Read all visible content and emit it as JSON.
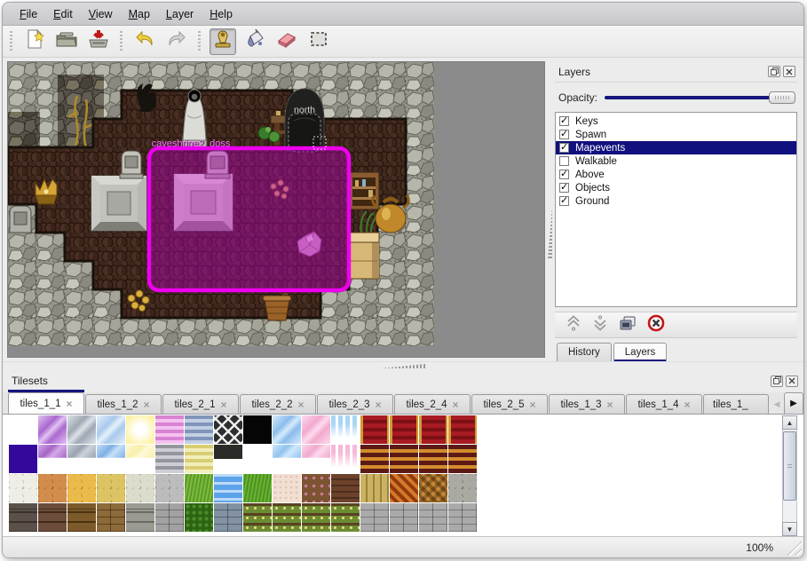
{
  "menu": {
    "items": [
      "File",
      "Edit",
      "View",
      "Map",
      "Layer",
      "Help"
    ]
  },
  "toolbar": {
    "tools": [
      "new-file",
      "open",
      "save",
      "undo",
      "redo",
      "stamp",
      "fill",
      "eraser",
      "select-rect"
    ],
    "active_tool": "stamp"
  },
  "map": {
    "door_label": "north",
    "event_label": "caveshrine2_doss",
    "selection_color": "#ee00ee"
  },
  "layers_panel": {
    "title": "Layers",
    "opacity_label": "Opacity:",
    "opacity_percent": 100,
    "items": [
      {
        "label": "Keys",
        "checked": true,
        "selected": false
      },
      {
        "label": "Spawn",
        "checked": true,
        "selected": false
      },
      {
        "label": "Mapevents",
        "checked": true,
        "selected": true
      },
      {
        "label": "Walkable",
        "checked": false,
        "selected": false
      },
      {
        "label": "Above",
        "checked": true,
        "selected": false
      },
      {
        "label": "Objects",
        "checked": true,
        "selected": false
      },
      {
        "label": "Ground",
        "checked": true,
        "selected": false
      }
    ],
    "tools": [
      "raise-layer",
      "lower-layer",
      "duplicate-layer",
      "delete-layer"
    ],
    "tabs": [
      {
        "label": "History",
        "active": false
      },
      {
        "label": "Layers",
        "active": true
      }
    ]
  },
  "tilesets_panel": {
    "title": "Tilesets",
    "tabs": [
      {
        "label": "tiles_1_1",
        "active": true,
        "clipped": false
      },
      {
        "label": "tiles_1_2",
        "active": false,
        "clipped": false
      },
      {
        "label": "tiles_2_1",
        "active": false,
        "clipped": false
      },
      {
        "label": "tiles_2_2",
        "active": false,
        "clipped": false
      },
      {
        "label": "tiles_2_3",
        "active": false,
        "clipped": false
      },
      {
        "label": "tiles_2_4",
        "active": false,
        "clipped": false
      },
      {
        "label": "tiles_2_5",
        "active": false,
        "clipped": false
      },
      {
        "label": "tiles_1_3",
        "active": false,
        "clipped": false
      },
      {
        "label": "tiles_1_4",
        "active": false,
        "clipped": false
      },
      {
        "label": "tiles_1_",
        "active": false,
        "clipped": true
      }
    ],
    "tile_rows": [
      [
        {
          "k": "solid",
          "a": "#ffffff"
        },
        {
          "k": "glass",
          "a": "#a969cf",
          "b": "#e2c2f2"
        },
        {
          "k": "glass",
          "a": "#9fa9b4",
          "b": "#dde2e8"
        },
        {
          "k": "glass",
          "a": "#a9c9ec",
          "b": "#e6f1fc"
        },
        {
          "k": "glow",
          "a": "#fdf2a8"
        },
        {
          "k": "hstripes",
          "a": "#d983d3",
          "b": "#f4c2f0"
        },
        {
          "k": "hstripes",
          "a": "#8195bb",
          "b": "#c3cfe3"
        },
        {
          "k": "lattice",
          "a": "#2e2e2e",
          "b": "#ececec"
        },
        {
          "k": "solid",
          "a": "#050505"
        },
        {
          "k": "glass",
          "a": "#8cbcec",
          "b": "#d6ebfd"
        },
        {
          "k": "glass",
          "a": "#f2a9cd",
          "b": "#fcdcee"
        },
        {
          "k": "icicle",
          "a": "#a9d6f6"
        },
        {
          "k": "carpet",
          "a": "#a81b22",
          "b": "#d19a32"
        },
        {
          "k": "carpet",
          "a": "#a81b22",
          "b": "#d19a32"
        },
        {
          "k": "carpet",
          "a": "#a81b22",
          "b": "#d19a32"
        },
        {
          "k": "carpet",
          "a": "#a81b22",
          "b": "#d19a32"
        }
      ],
      [
        {
          "k": "solid",
          "a": "#33089b"
        },
        {
          "k": "glasshalf",
          "a": "#a565c5",
          "b": "#d5a9e9"
        },
        {
          "k": "glasshalf",
          "a": "#98a2ae",
          "b": "#ccd3da"
        },
        {
          "k": "glasshalf",
          "a": "#7fb0e4",
          "b": "#c6e0f8"
        },
        {
          "k": "glasshalf",
          "a": "#f7efa9",
          "b": "#fdf9d8"
        },
        {
          "k": "hstripes",
          "a": "#95959d",
          "b": "#cdcdd5"
        },
        {
          "k": "hstripes",
          "a": "#d9cd74",
          "b": "#f2eebb"
        },
        {
          "k": "signhalf",
          "a": "#2b2b28"
        },
        {
          "k": "solid",
          "a": "#ffffff"
        },
        {
          "k": "glasshalf",
          "a": "#90c2ec",
          "b": "#d0e8fc"
        },
        {
          "k": "glasshalf",
          "a": "#f0a9cd",
          "b": "#fad9ec"
        },
        {
          "k": "icicle",
          "a": "#f6b9da"
        },
        {
          "k": "hstripes2",
          "a": "#5c1a17",
          "b": "#d28d2c"
        },
        {
          "k": "hstripes2",
          "a": "#5c1a17",
          "b": "#d28d2c"
        },
        {
          "k": "hstripes2",
          "a": "#5c1a17",
          "b": "#d28d2c"
        },
        {
          "k": "hstripes2",
          "a": "#5c1a17",
          "b": "#d28d2c"
        }
      ],
      [
        {
          "k": "cobble",
          "a": "#eeeee6",
          "b": "#b9b9af"
        },
        {
          "k": "cobble",
          "a": "#d28d4c",
          "b": "#a55a28"
        },
        {
          "k": "cobble",
          "a": "#eaba4a",
          "b": "#c18a22"
        },
        {
          "k": "cobble",
          "a": "#dcc364",
          "b": "#ab9342"
        },
        {
          "k": "cobble",
          "a": "#dcdccc",
          "b": "#a9a999"
        },
        {
          "k": "cobble",
          "a": "#bcbcbc",
          "b": "#8a8a92"
        },
        {
          "k": "grass",
          "a": "#7cbb3c",
          "b": "#5c9a2a"
        },
        {
          "k": "water",
          "a": "#5ca2ea",
          "b": "#bbdaf8"
        },
        {
          "k": "grass",
          "a": "#6ab232",
          "b": "#4c9222"
        },
        {
          "k": "noise",
          "a": "#f2dfd2",
          "b": "#e2c2b2"
        },
        {
          "k": "floral",
          "a": "#7c5432",
          "b": "#ca7a92"
        },
        {
          "k": "shingle",
          "a": "#4c2e1e",
          "b": "#6c422a"
        },
        {
          "k": "planks",
          "a": "#cab262",
          "b": "#9a823a"
        },
        {
          "k": "weave",
          "a": "#d27a2a",
          "b": "#923a0a"
        },
        {
          "k": "herring",
          "a": "#c28a3a",
          "b": "#925a1a"
        },
        {
          "k": "cobble",
          "a": "#aaaaa2",
          "b": "#72726a"
        }
      ],
      [
        {
          "k": "wall",
          "a": "#5a524a",
          "b": "#3a322a"
        },
        {
          "k": "wall",
          "a": "#6c4c3a",
          "b": "#422a1a"
        },
        {
          "k": "wall",
          "a": "#7c5a2a",
          "b": "#4c3212"
        },
        {
          "k": "brick",
          "a": "#8c6a3a",
          "b": "#5c421a"
        },
        {
          "k": "wall",
          "a": "#9a9a92",
          "b": "#6a6a62"
        },
        {
          "k": "brick",
          "a": "#a2a2a2",
          "b": "#72727a"
        },
        {
          "k": "hedge",
          "a": "#4c8c2a",
          "b": "#2c6412"
        },
        {
          "k": "brick",
          "a": "#8292a2",
          "b": "#526272"
        },
        {
          "k": "farm",
          "a": "#6c8c32",
          "b": "#5a4222"
        },
        {
          "k": "farm",
          "a": "#6c8c32",
          "b": "#5a4222"
        },
        {
          "k": "farm",
          "a": "#6c8c32",
          "b": "#5a4222"
        },
        {
          "k": "farm",
          "a": "#6c8c32",
          "b": "#5a4222"
        },
        {
          "k": "brick",
          "a": "#aaaaaa",
          "b": "#7a7a7a"
        },
        {
          "k": "brick",
          "a": "#aaaaaa",
          "b": "#7a7a7a"
        },
        {
          "k": "brick",
          "a": "#aaaaaa",
          "b": "#7a7a7a"
        },
        {
          "k": "brick",
          "a": "#aaaaaa",
          "b": "#7a7a7a"
        }
      ]
    ]
  },
  "statusbar": {
    "zoom": "100%"
  },
  "glyphs": {
    "close": "×",
    "check": "✓",
    "arrow_left": "◀",
    "arrow_right": "▶",
    "arrow_up": "▲",
    "arrow_down": "▼"
  },
  "colors": {
    "accent_navy": "#16167d",
    "selection_magenta": "#ee00ee"
  }
}
